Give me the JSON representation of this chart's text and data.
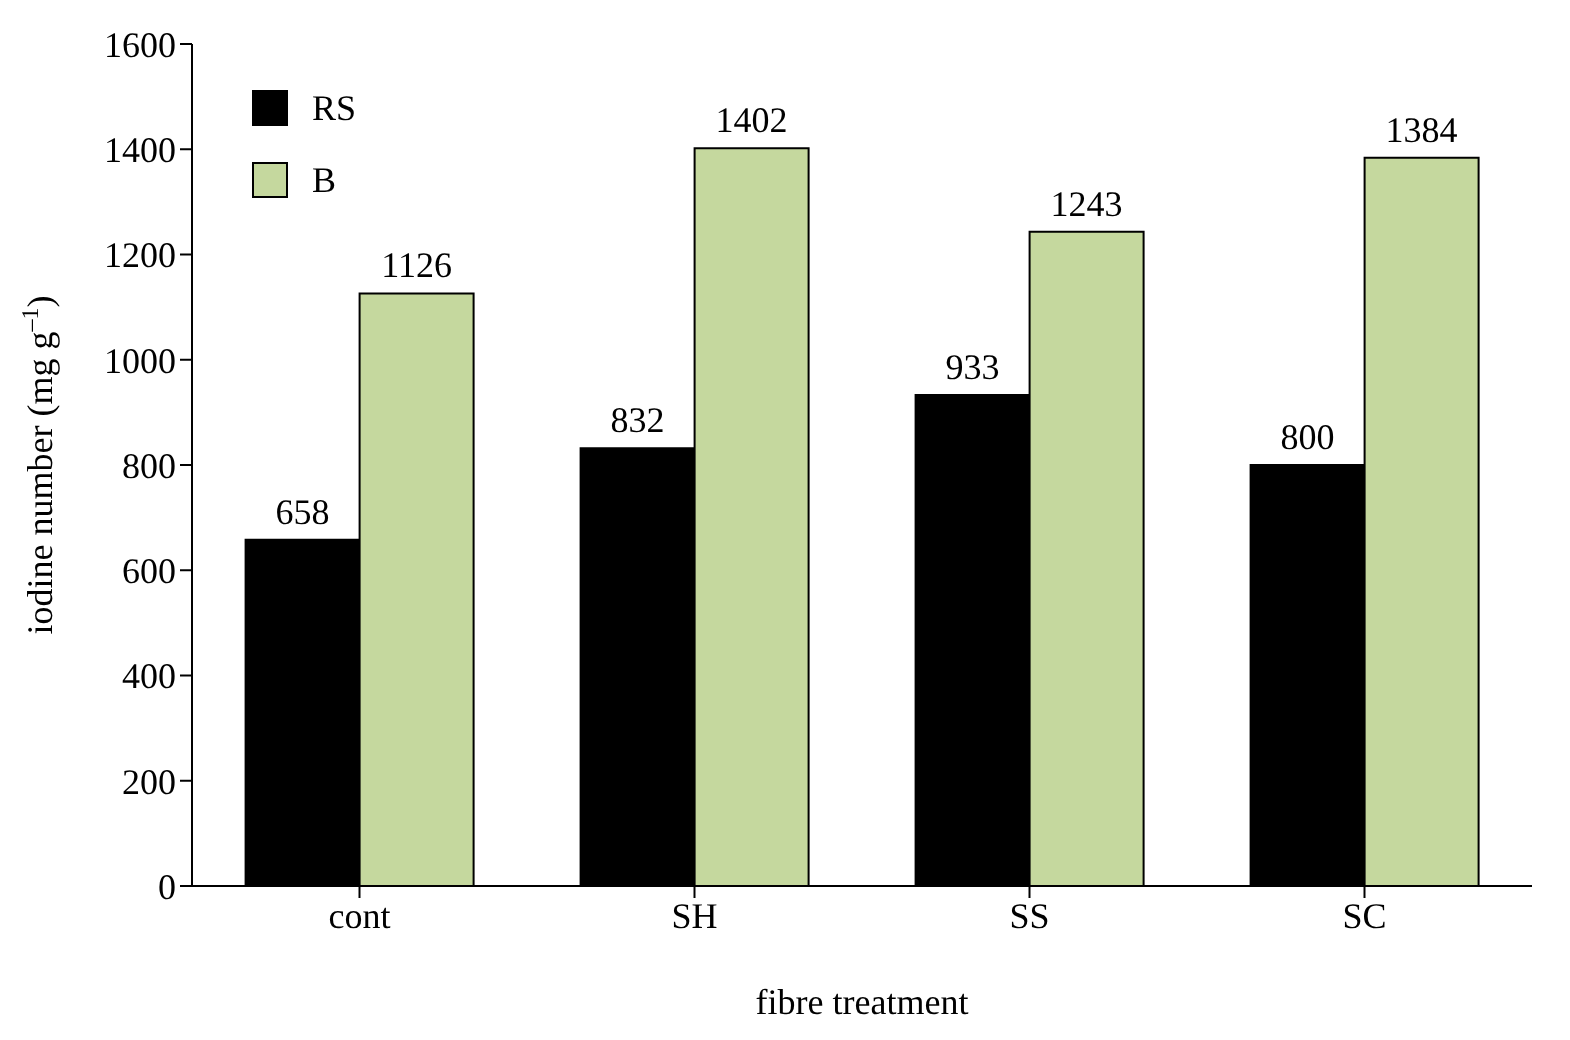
{
  "chart_data": {
    "type": "bar",
    "xlabel": "fibre treatment",
    "ylabel": "iodine number (mg g$^{–1}$)",
    "categories": [
      "cont",
      "SH",
      "SS",
      "SC"
    ],
    "series": [
      {
        "name": "RS",
        "color": "#000000",
        "values": [
          658,
          832,
          933,
          800
        ]
      },
      {
        "name": "B",
        "color": "#c5d89e",
        "values": [
          1126,
          1402,
          1243,
          1384
        ]
      }
    ],
    "ylim": [
      0,
      1600
    ],
    "yticks": [
      0,
      200,
      400,
      600,
      800,
      1000,
      1200,
      1400,
      1600
    ],
    "data_labels": true,
    "legend": "top left",
    "grid": false
  }
}
